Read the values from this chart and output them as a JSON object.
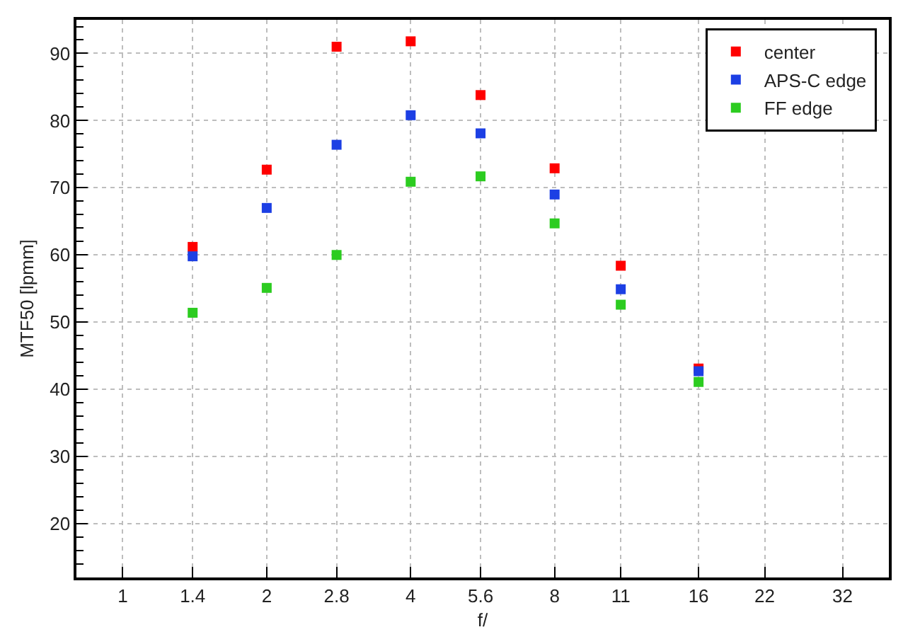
{
  "chart_data": {
    "type": "scatter",
    "xlabel": "f/",
    "ylabel": "MTF50 [lpmm]",
    "log": "x",
    "grid": true,
    "legend": "top right",
    "marker": "square",
    "xlim": [
      0.8,
      40
    ],
    "xticks": [
      1,
      1.4,
      2,
      2.8,
      4,
      5.6,
      8,
      11,
      16,
      22,
      32
    ],
    "ylim": [
      12,
      95
    ],
    "yticks": [
      {
        "value": 14,
        "label": null
      },
      {
        "value": 16,
        "label": null
      },
      {
        "value": 18,
        "label": null
      },
      20,
      {
        "value": 22,
        "label": null
      },
      {
        "value": 24,
        "label": null
      },
      {
        "value": 26,
        "label": null
      },
      {
        "value": 28,
        "label": null
      },
      30,
      {
        "value": 32,
        "label": null
      },
      {
        "value": 34,
        "label": null
      },
      {
        "value": 36,
        "label": null
      },
      {
        "value": 38,
        "label": null
      },
      40,
      {
        "value": 42,
        "label": null
      },
      {
        "value": 44,
        "label": null
      },
      {
        "value": 46,
        "label": null
      },
      {
        "value": 48,
        "label": null
      },
      50,
      {
        "value": 52,
        "label": null
      },
      {
        "value": 54,
        "label": null
      },
      {
        "value": 56,
        "label": null
      },
      {
        "value": 58,
        "label": null
      },
      60,
      {
        "value": 62,
        "label": null
      },
      {
        "value": 64,
        "label": null
      },
      {
        "value": 66,
        "label": null
      },
      {
        "value": 68,
        "label": null
      },
      70,
      {
        "value": 72,
        "label": null
      },
      {
        "value": 74,
        "label": null
      },
      {
        "value": 76,
        "label": null
      },
      {
        "value": 78,
        "label": null
      },
      80,
      {
        "value": 82,
        "label": null
      },
      {
        "value": 84,
        "label": null
      },
      {
        "value": 86,
        "label": null
      },
      {
        "value": 88,
        "label": null
      },
      90,
      {
        "value": 92,
        "label": null
      },
      {
        "value": 94,
        "label": null
      }
    ],
    "x": [
      1.4,
      2,
      2.8,
      4,
      5.6,
      8,
      11,
      16
    ],
    "series": [
      {
        "name": "center",
        "color": "#ff0000",
        "values": [
          61.2,
          72.7,
          91.0,
          91.8,
          83.8,
          72.9,
          58.4,
          43.1
        ]
      },
      {
        "name": "APS-C edge",
        "color": "#1c3fe4",
        "values": [
          59.8,
          67.0,
          76.4,
          80.8,
          78.1,
          69.0,
          54.9,
          42.7
        ]
      },
      {
        "name": "FF edge",
        "color": "#2ccc20",
        "values": [
          51.4,
          55.1,
          60.0,
          70.9,
          71.7,
          64.7,
          52.6,
          41.1
        ]
      }
    ]
  }
}
